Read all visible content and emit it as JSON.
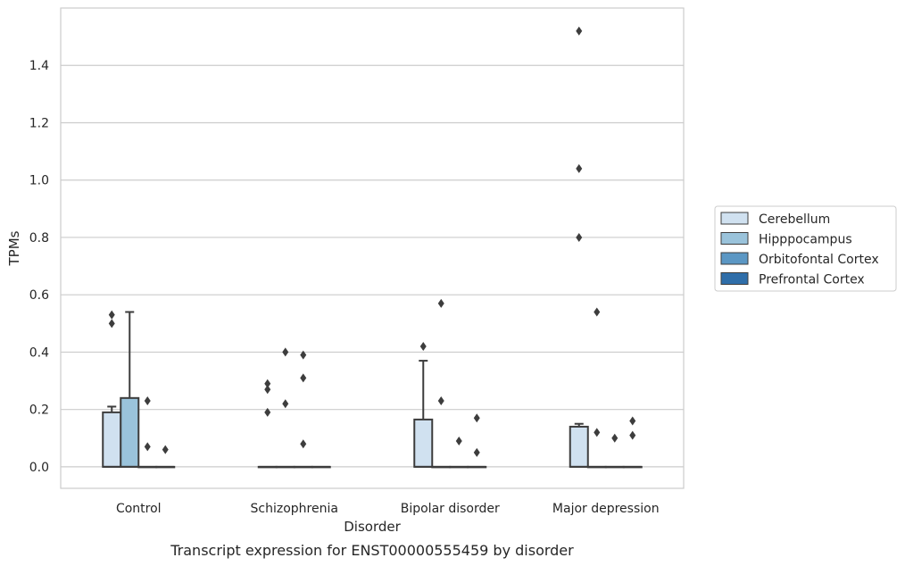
{
  "chart_data": {
    "type": "boxplot",
    "caption": "Transcript expression for ENST00000555459 by disorder",
    "xlabel": "Disorder",
    "ylabel": "TPMs",
    "ylim": [
      -0.075,
      1.6
    ],
    "yticks": [
      0.0,
      0.2,
      0.4,
      0.6,
      0.8,
      1.0,
      1.2,
      1.4
    ],
    "ytick_labels": [
      "0.0",
      "0.2",
      "0.4",
      "0.6",
      "0.8",
      "1.0",
      "1.2",
      "1.4"
    ],
    "grid": "horizontal",
    "legend_position": "right",
    "categories": [
      "Control",
      "Schizophrenia",
      "Bipolar disorder",
      "Major depression"
    ],
    "series": [
      {
        "name": "Cerebellum",
        "color": "#d0e1f0",
        "boxes": [
          {
            "q1": 0.0,
            "median": 0.0,
            "q3": 0.19,
            "whisker_low": 0.0,
            "whisker_high": 0.21,
            "outliers": [
              0.5,
              0.53
            ]
          },
          {
            "q1": 0.0,
            "median": 0.0,
            "q3": 0.0,
            "whisker_low": 0.0,
            "whisker_high": 0.0,
            "outliers": [
              0.19,
              0.27,
              0.29
            ]
          },
          {
            "q1": 0.0,
            "median": 0.0,
            "q3": 0.165,
            "whisker_low": 0.0,
            "whisker_high": 0.37,
            "outliers": [
              0.42
            ]
          },
          {
            "q1": 0.0,
            "median": 0.0,
            "q3": 0.14,
            "whisker_low": 0.0,
            "whisker_high": 0.15,
            "outliers": [
              0.8,
              1.04,
              1.52
            ]
          }
        ]
      },
      {
        "name": "Hipppocampus",
        "color": "#9ac3db",
        "boxes": [
          {
            "q1": 0.0,
            "median": 0.0,
            "q3": 0.24,
            "whisker_low": 0.0,
            "whisker_high": 0.54,
            "outliers": []
          },
          {
            "q1": 0.0,
            "median": 0.0,
            "q3": 0.0,
            "whisker_low": 0.0,
            "whisker_high": 0.0,
            "outliers": [
              0.4,
              0.22
            ]
          },
          {
            "q1": 0.0,
            "median": 0.0,
            "q3": 0.0,
            "whisker_low": 0.0,
            "whisker_high": 0.0,
            "outliers": [
              0.57,
              0.23
            ]
          },
          {
            "q1": 0.0,
            "median": 0.0,
            "q3": 0.0,
            "whisker_low": 0.0,
            "whisker_high": 0.0,
            "outliers": [
              0.54,
              0.12
            ]
          }
        ]
      },
      {
        "name": "Orbitofontal Cortex",
        "color": "#5b97c4",
        "boxes": [
          {
            "q1": 0.0,
            "median": 0.0,
            "q3": 0.0,
            "whisker_low": 0.0,
            "whisker_high": 0.0,
            "outliers": [
              0.23,
              0.07
            ]
          },
          {
            "q1": 0.0,
            "median": 0.0,
            "q3": 0.0,
            "whisker_low": 0.0,
            "whisker_high": 0.0,
            "outliers": [
              0.39,
              0.31,
              0.08
            ]
          },
          {
            "q1": 0.0,
            "median": 0.0,
            "q3": 0.0,
            "whisker_low": 0.0,
            "whisker_high": 0.0,
            "outliers": [
              0.09
            ]
          },
          {
            "q1": 0.0,
            "median": 0.0,
            "q3": 0.0,
            "whisker_low": 0.0,
            "whisker_high": 0.0,
            "outliers": [
              0.1
            ]
          }
        ]
      },
      {
        "name": "Prefrontal Cortex",
        "color": "#2f6ea9",
        "boxes": [
          {
            "q1": 0.0,
            "median": 0.0,
            "q3": 0.0,
            "whisker_low": 0.0,
            "whisker_high": 0.0,
            "outliers": [
              0.06
            ]
          },
          {
            "q1": 0.0,
            "median": 0.0,
            "q3": 0.0,
            "whisker_low": 0.0,
            "whisker_high": 0.0,
            "outliers": []
          },
          {
            "q1": 0.0,
            "median": 0.0,
            "q3": 0.0,
            "whisker_low": 0.0,
            "whisker_high": 0.0,
            "outliers": [
              0.17,
              0.05
            ]
          },
          {
            "q1": 0.0,
            "median": 0.0,
            "q3": 0.0,
            "whisker_low": 0.0,
            "whisker_high": 0.0,
            "outliers": [
              0.16,
              0.11
            ]
          }
        ]
      }
    ]
  }
}
